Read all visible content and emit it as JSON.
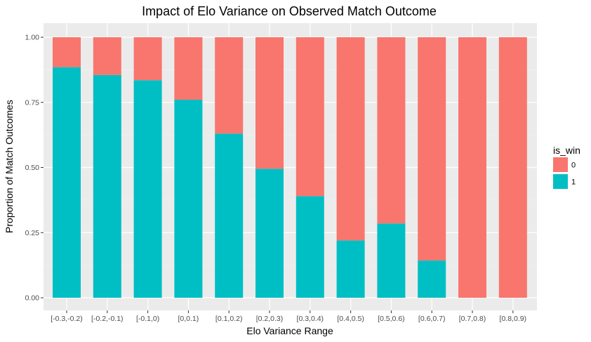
{
  "chart_data": {
    "type": "bar",
    "stacked": true,
    "title": "Impact of Elo Variance on Observed Match Outcome",
    "xlabel": "Elo Variance Range",
    "ylabel": "Proportion of Match Outcomes",
    "ylim": [
      0,
      1
    ],
    "yticks": [
      "0.00",
      "0.25",
      "0.50",
      "0.75",
      "1.00"
    ],
    "grid": true,
    "legend": {
      "title": "is_win",
      "position": "right"
    },
    "categories": [
      "[-0.3,-0.2)",
      "[-0.2,-0.1)",
      "[-0.1,0)",
      "[0,0.1)",
      "[0.1,0.2)",
      "[0.2,0.3)",
      "[0.3,0.4)",
      "[0.4,0.5)",
      "[0.5,0.6)",
      "[0.6,0.7)",
      "[0.7,0.8)",
      "[0.8,0.9)"
    ],
    "series": [
      {
        "name": "0",
        "color": "#F8766D",
        "values": [
          0.115,
          0.145,
          0.165,
          0.24,
          0.37,
          0.505,
          0.61,
          0.78,
          0.715,
          0.857,
          1.0,
          1.0
        ]
      },
      {
        "name": "1",
        "color": "#00BFC4",
        "values": [
          0.885,
          0.855,
          0.835,
          0.76,
          0.63,
          0.495,
          0.39,
          0.22,
          0.285,
          0.143,
          0.0,
          0.0
        ]
      }
    ]
  }
}
